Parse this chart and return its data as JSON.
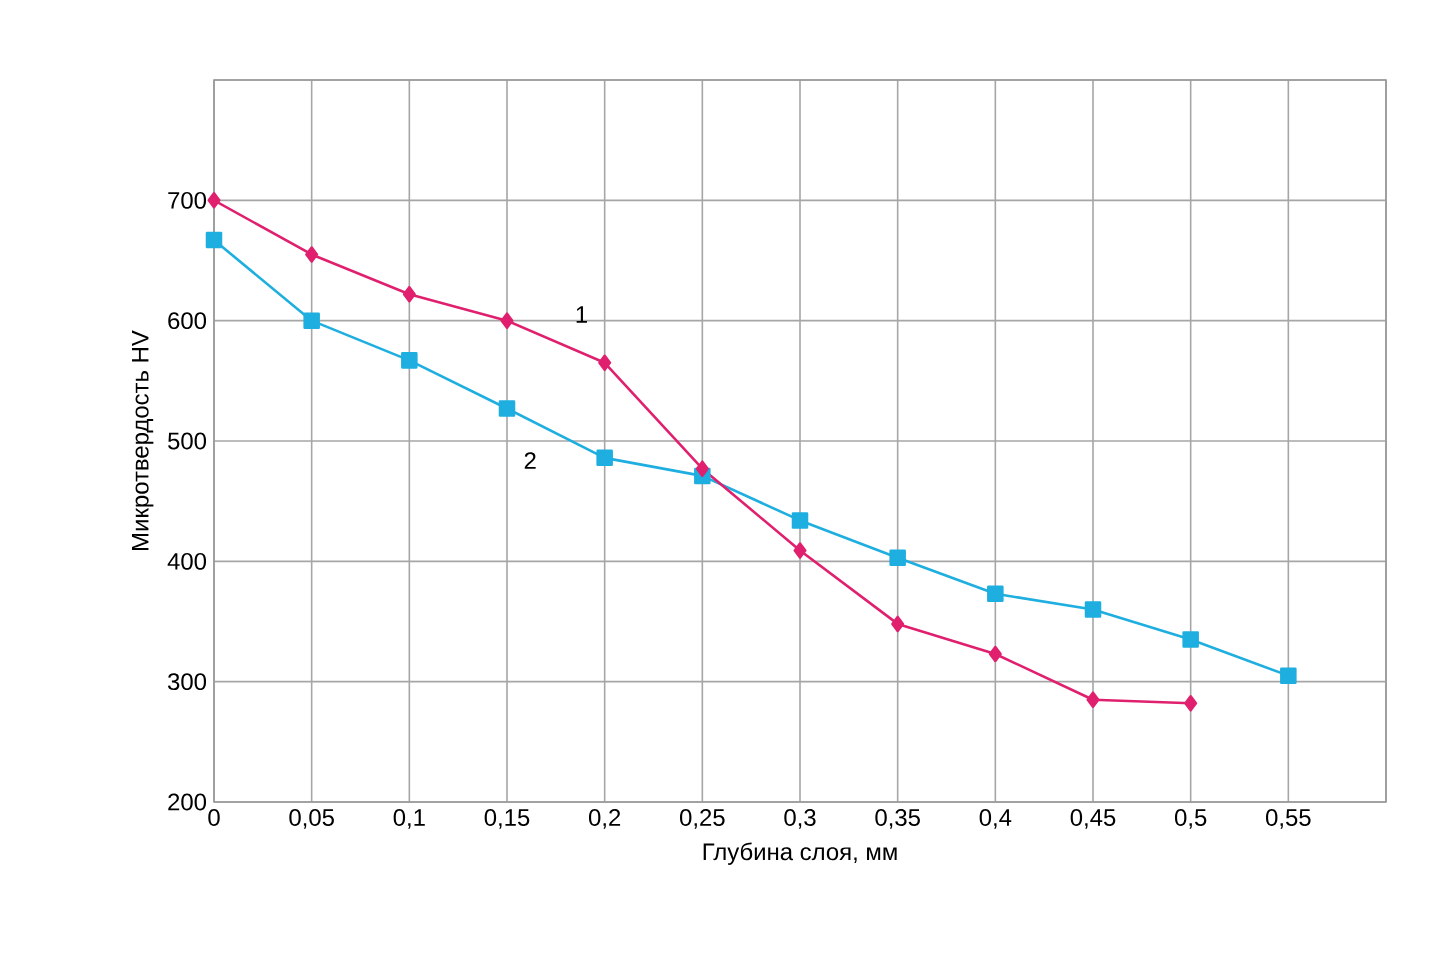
{
  "chart_data": {
    "type": "line",
    "xlabel": "Глубина слоя, мм",
    "ylabel": "Микротвердость HV",
    "x": [
      0,
      0.05,
      0.1,
      0.15,
      0.2,
      0.25,
      0.3,
      0.35,
      0.4,
      0.45,
      0.5,
      0.55
    ],
    "series": [
      {
        "name": "1",
        "color": "#e0206e",
        "marker": "diamond",
        "values": [
          700,
          655,
          622,
          600,
          565,
          477,
          409,
          348,
          323,
          285,
          282,
          null
        ]
      },
      {
        "name": "2",
        "color": "#1eaee0",
        "marker": "square",
        "values": [
          667,
          600,
          567,
          527,
          486,
          471,
          434,
          403,
          373,
          360,
          335,
          305
        ]
      }
    ],
    "xlim": [
      0,
      0.6
    ],
    "ylim": [
      200,
      800
    ],
    "xticks": [
      0,
      {
        "value": 0.05,
        "label": "0,05"
      },
      {
        "value": 0.1,
        "label": "0,1"
      },
      {
        "value": 0.15,
        "label": "0,15"
      },
      {
        "value": 0.2,
        "label": "0,2"
      },
      {
        "value": 0.25,
        "label": "0,25"
      },
      {
        "value": 0.3,
        "label": "0,3"
      },
      {
        "value": 0.35,
        "label": "0,35"
      },
      {
        "value": 0.4,
        "label": "0,4"
      },
      {
        "value": 0.45,
        "label": "0,45"
      },
      {
        "value": 0.5,
        "label": "0,5"
      },
      {
        "value": 0.55,
        "label": "0,55"
      },
      {
        "value": 0.6,
        "label": null
      }
    ],
    "yticks": [
      200,
      300,
      400,
      500,
      600,
      700,
      {
        "value": 800,
        "label": null
      }
    ],
    "grid": true,
    "legend": false,
    "line_style": "solid"
  }
}
